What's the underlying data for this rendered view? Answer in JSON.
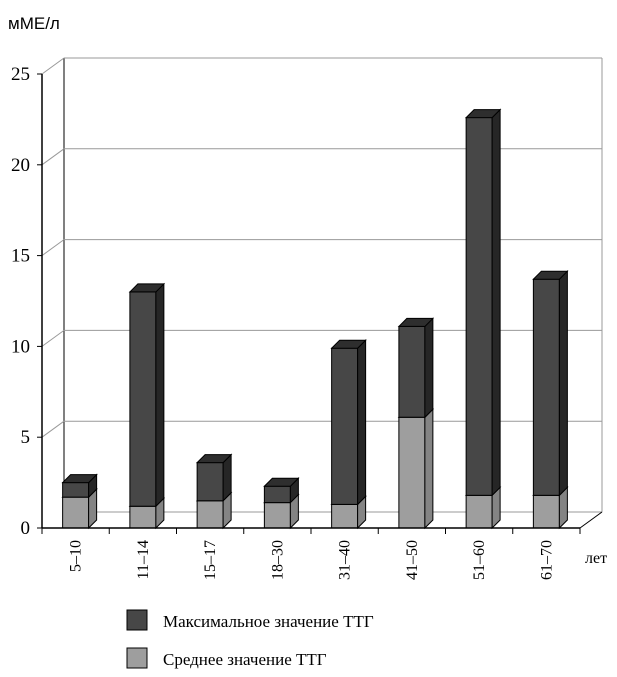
{
  "chart_data": {
    "type": "bar",
    "style": "3d-stacked-overlay",
    "ylabel": "мМЕ/л",
    "xlabel": "лет",
    "ylim": [
      0,
      25
    ],
    "yticks": [
      "0",
      "5",
      "10",
      "15",
      "20",
      "25"
    ],
    "grid": true,
    "legend_position": "bottom",
    "categories": [
      "5–10",
      "11–14",
      "15–17",
      "18–30",
      "31–40",
      "41–50",
      "51–60",
      "61–70"
    ],
    "series": [
      {
        "name": "Максимальное значение ТТГ",
        "values": [
          2.5,
          13.0,
          3.6,
          2.3,
          9.9,
          11.1,
          22.6,
          13.7
        ]
      },
      {
        "name": "Среднее значение ТТГ",
        "values": [
          1.7,
          1.2,
          1.5,
          1.4,
          1.3,
          6.1,
          1.8,
          1.8
        ]
      }
    ],
    "colors": {
      "max_front": "#474747",
      "max_top": "#2e2e2e",
      "max_side": "#262626",
      "mean_front": "#9e9e9e",
      "mean_top": "#bdbdbd",
      "mean_side": "#848484",
      "grid": "#999999",
      "axis": "#000000"
    }
  }
}
